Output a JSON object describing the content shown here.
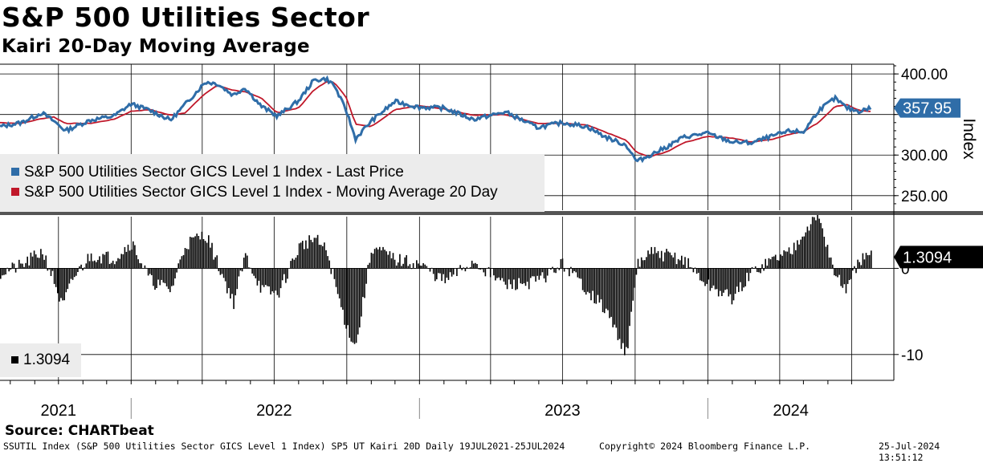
{
  "header": {
    "title": "S&P 500 Utilities Sector",
    "subtitle": "Kairi 20-Day Moving Average"
  },
  "legend": {
    "price_label": "S&P 500 Utilities Sector GICS Level 1 Index - Last Price",
    "ma_label": "S&P 500 Utilities Sector GICS Level 1 Index - Moving Average 20 Day",
    "kairi_label": "1.3094"
  },
  "colors": {
    "price": "#2f6da8",
    "ma": "#c0182a",
    "kairi": "#000000",
    "price_tag_bg": "#2f6da8",
    "kairi_tag_bg": "#000000"
  },
  "chart_data": [
    {
      "type": "line",
      "title": "S&P 500 Utilities Sector",
      "ylabel": "Index",
      "ylim": [
        232,
        412
      ],
      "yticks": [
        250,
        300,
        350,
        400
      ],
      "ytick_labels": [
        "250.00",
        "300.00",
        "",
        "400.00"
      ],
      "last_value_tag": "357.95",
      "x_start": "2021-07-19",
      "x_end": "2024-07-25",
      "series": [
        {
          "name": "S&P 500 Utilities Sector GICS Level 1 Index - Last Price",
          "x": [
            "2021-07-19",
            "2021-08-15",
            "2021-09-10",
            "2021-09-25",
            "2021-10-10",
            "2021-11-10",
            "2021-12-10",
            "2022-01-01",
            "2022-01-25",
            "2022-02-20",
            "2022-03-10",
            "2022-04-05",
            "2022-04-20",
            "2022-05-10",
            "2022-05-25",
            "2022-06-15",
            "2022-07-05",
            "2022-08-01",
            "2022-08-20",
            "2022-09-05",
            "2022-09-15",
            "2022-10-01",
            "2022-10-12",
            "2022-11-01",
            "2022-12-01",
            "2022-12-31",
            "2023-02-01",
            "2023-03-10",
            "2023-04-20",
            "2023-05-30",
            "2023-07-01",
            "2023-08-01",
            "2023-08-25",
            "2023-09-20",
            "2023-10-03",
            "2023-10-20",
            "2023-11-10",
            "2023-12-01",
            "2023-12-31",
            "2024-02-01",
            "2024-02-25",
            "2024-03-25",
            "2024-04-15",
            "2024-05-01",
            "2024-05-20",
            "2024-06-10",
            "2024-06-25",
            "2024-07-10",
            "2024-07-25"
          ],
          "values": [
            335,
            340,
            352,
            342,
            330,
            343,
            348,
            363,
            355,
            343,
            362,
            390,
            388,
            374,
            383,
            360,
            348,
            367,
            392,
            394,
            386,
            353,
            320,
            342,
            366,
            359,
            358,
            344,
            353,
            334,
            340,
            335,
            322,
            312,
            292,
            300,
            310,
            322,
            327,
            316,
            315,
            324,
            330,
            328,
            355,
            370,
            358,
            354,
            358
          ]
        },
        {
          "name": "S&P 500 Utilities Sector GICS Level 1 Index - Moving Average 20 Day",
          "x": [
            "2021-07-19",
            "2021-08-15",
            "2021-09-10",
            "2021-09-25",
            "2021-10-10",
            "2021-11-10",
            "2021-12-10",
            "2022-01-01",
            "2022-01-25",
            "2022-02-20",
            "2022-03-10",
            "2022-04-05",
            "2022-04-20",
            "2022-05-10",
            "2022-05-25",
            "2022-06-15",
            "2022-07-05",
            "2022-08-01",
            "2022-08-20",
            "2022-09-05",
            "2022-09-15",
            "2022-10-01",
            "2022-10-12",
            "2022-11-01",
            "2022-12-01",
            "2022-12-31",
            "2023-02-01",
            "2023-03-10",
            "2023-04-20",
            "2023-05-30",
            "2023-07-01",
            "2023-08-01",
            "2023-08-25",
            "2023-09-20",
            "2023-10-03",
            "2023-10-20",
            "2023-11-10",
            "2023-12-01",
            "2023-12-31",
            "2024-02-01",
            "2024-02-25",
            "2024-03-25",
            "2024-04-15",
            "2024-05-01",
            "2024-05-20",
            "2024-06-10",
            "2024-06-25",
            "2024-07-10",
            "2024-07-25"
          ],
          "values": [
            340,
            339,
            345,
            347,
            339,
            339,
            344,
            354,
            356,
            349,
            352,
            376,
            386,
            380,
            378,
            370,
            352,
            358,
            380,
            390,
            390,
            370,
            338,
            335,
            356,
            361,
            357,
            349,
            350,
            339,
            339,
            337,
            328,
            318,
            303,
            298,
            304,
            315,
            323,
            321,
            316,
            320,
            326,
            329,
            340,
            360,
            362,
            355,
            354
          ]
        }
      ]
    },
    {
      "type": "bar",
      "title": "Kairi 20D",
      "ylim": [
        -13,
        6
      ],
      "yticks": [
        -10,
        0
      ],
      "ytick_labels": [
        "-10",
        "0"
      ],
      "last_value_tag": "1.3094",
      "x_start": "2021-07-19",
      "x_end": "2024-07-25",
      "x": [
        "2021-07-19",
        "2021-08-15",
        "2021-09-10",
        "2021-09-25",
        "2021-10-05",
        "2021-10-20",
        "2021-11-10",
        "2021-12-10",
        "2022-01-01",
        "2022-01-25",
        "2022-02-20",
        "2022-03-10",
        "2022-04-05",
        "2022-04-20",
        "2022-05-10",
        "2022-05-25",
        "2022-06-15",
        "2022-07-05",
        "2022-08-01",
        "2022-08-20",
        "2022-09-05",
        "2022-09-20",
        "2022-10-01",
        "2022-10-12",
        "2022-11-01",
        "2022-12-01",
        "2022-12-31",
        "2023-02-01",
        "2023-03-10",
        "2023-04-20",
        "2023-05-30",
        "2023-07-01",
        "2023-08-01",
        "2023-08-25",
        "2023-09-20",
        "2023-10-03",
        "2023-10-20",
        "2023-11-10",
        "2023-12-01",
        "2023-12-31",
        "2024-02-01",
        "2024-02-25",
        "2024-03-25",
        "2024-04-15",
        "2024-05-01",
        "2024-05-20",
        "2024-06-10",
        "2024-06-25",
        "2024-07-10",
        "2024-07-25"
      ],
      "values": [
        -0.5,
        0.3,
        2.0,
        -1.5,
        -4.5,
        -1.0,
        1.5,
        1.2,
        3.0,
        -1.5,
        -2.5,
        2.8,
        4.0,
        0.5,
        -4.0,
        1.5,
        -2.5,
        -3.0,
        2.5,
        3.5,
        2.0,
        -3.5,
        -7.0,
        -9.0,
        2.5,
        1.0,
        0.5,
        -1.5,
        0.8,
        -2.0,
        -1.5,
        0.5,
        -2.5,
        -5.0,
        -10.0,
        0.5,
        1.8,
        1.5,
        1.0,
        -2.0,
        -3.5,
        -0.5,
        1.2,
        2.0,
        4.5,
        6.0,
        -1.0,
        -2.5,
        1.0,
        1.3
      ]
    }
  ],
  "xaxis": {
    "year_labels": [
      "2021",
      "2022",
      "2023",
      "2024"
    ]
  },
  "footer": {
    "source": "Source: CHARTbeat",
    "description": "SSUTIL Index (S&P 500 Utilities Sector GICS Level 1 Index) SP5 UT Kairi 20D  Daily 19JUL2021-25JUL2024",
    "copyright": "Copyright© 2024 Bloomberg Finance L.P.",
    "timestamp": "25-Jul-2024 13:51:12"
  }
}
